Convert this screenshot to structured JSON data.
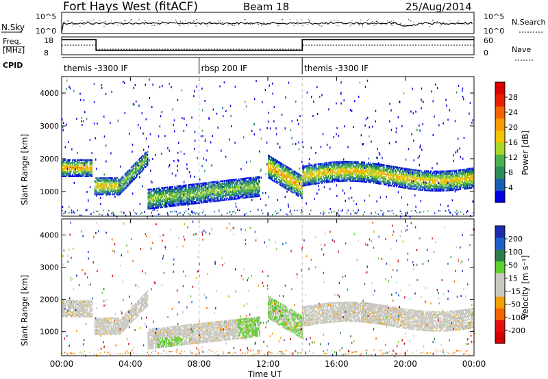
{
  "header": {
    "station": "Fort Hays West (fitACF)",
    "beam": "Beam 18",
    "date": "25/Aug/2014"
  },
  "noise_panel": {
    "left_label": "N.Sky",
    "right_label": "N.Search",
    "ticks_left": [
      "10^5",
      "10^0"
    ],
    "ticks_right": [
      "10^5",
      "10^0"
    ]
  },
  "freq_panel": {
    "left_label_1": "Freq.",
    "left_label_2": "[MHz]",
    "right_label": "Nave",
    "ticks_left": [
      "18",
      "8"
    ],
    "ticks_right": [
      "60",
      "0"
    ],
    "freq_steps": [
      {
        "start_hr": 0.0,
        "end_hr": 2.0,
        "mhz": 16.5
      },
      {
        "start_hr": 2.0,
        "end_hr": 14.0,
        "mhz": 10.5
      },
      {
        "start_hr": 14.0,
        "end_hr": 24.0,
        "mhz": 16.5
      }
    ]
  },
  "cpid_panel": {
    "label": "CPID",
    "segments": [
      {
        "start_hr": 0,
        "end_hr": 8,
        "text": "themis -3300 IF"
      },
      {
        "start_hr": 8,
        "end_hr": 14,
        "text": "rbsp 200 IF"
      },
      {
        "start_hr": 14,
        "end_hr": 24,
        "text": "themis -3300 IF"
      }
    ]
  },
  "colors": {
    "power": [
      "#0000e6",
      "#1a5fb4",
      "#2e8b57",
      "#4caf50",
      "#a8d52a",
      "#f2c300",
      "#f59a00",
      "#f06400",
      "#e82000",
      "#d80000"
    ],
    "velocity": [
      "#1a2db0",
      "#1f5fc8",
      "#2e7d4a",
      "#5ccf2e",
      "#c8c8c0",
      "#c8c8c0",
      "#f2a000",
      "#f06400",
      "#e01010",
      "#d00000"
    ],
    "scatter_gray": "#c8c8c0"
  },
  "chart_data": [
    {
      "type": "heatmap",
      "name": "power",
      "ylabel": "Slant Range [km]",
      "xlim_hours": [
        0,
        24
      ],
      "ylim_km": [
        250,
        4500
      ],
      "yticks": [
        "1000",
        "2000",
        "3000",
        "4000"
      ],
      "colorbar_label": "Power [dB]",
      "colorbar_ticks": [
        "4",
        "8",
        "12",
        "16",
        "20",
        "24",
        "28"
      ],
      "colorbar_range": [
        0,
        32
      ],
      "bands": [
        {
          "start_hr": 0.0,
          "end_hr": 1.8,
          "center_km": 1750,
          "width_km": 260,
          "peak_db": 22
        },
        {
          "start_hr": 1.9,
          "end_hr": 3.3,
          "center_km": 1200,
          "width_km": 260,
          "peak_db": 20
        },
        {
          "start_hr": 3.3,
          "end_hr": 5.0,
          "center_km": 1550,
          "width_km": 240,
          "peak_db": 14
        },
        {
          "start_hr": 5.0,
          "end_hr": 11.5,
          "center_km": 950,
          "width_km": 300,
          "peak_db": 14
        },
        {
          "start_hr": 12.0,
          "end_hr": 14.0,
          "center_km": 1450,
          "width_km": 350,
          "peak_db": 22
        },
        {
          "start_hr": 14.0,
          "end_hr": 24.0,
          "center_km": 1650,
          "width_km": 300,
          "peak_db": 20
        }
      ]
    },
    {
      "type": "heatmap",
      "name": "velocity",
      "ylabel": "Slant Range [km]",
      "xlabel": "Time UT",
      "xticks": [
        "00:00",
        "04:00",
        "08:00",
        "12:00",
        "16:00",
        "20:00",
        "00:00"
      ],
      "xlim_hours": [
        0,
        24
      ],
      "ylim_km": [
        250,
        4500
      ],
      "yticks": [
        "1000",
        "2000",
        "3000",
        "4000"
      ],
      "colorbar_label": "Velocity [m s⁻¹]",
      "colorbar_ticks": [
        "200",
        "100",
        "50",
        "15",
        "-15",
        "-50",
        "-100",
        "-200"
      ]
    }
  ]
}
